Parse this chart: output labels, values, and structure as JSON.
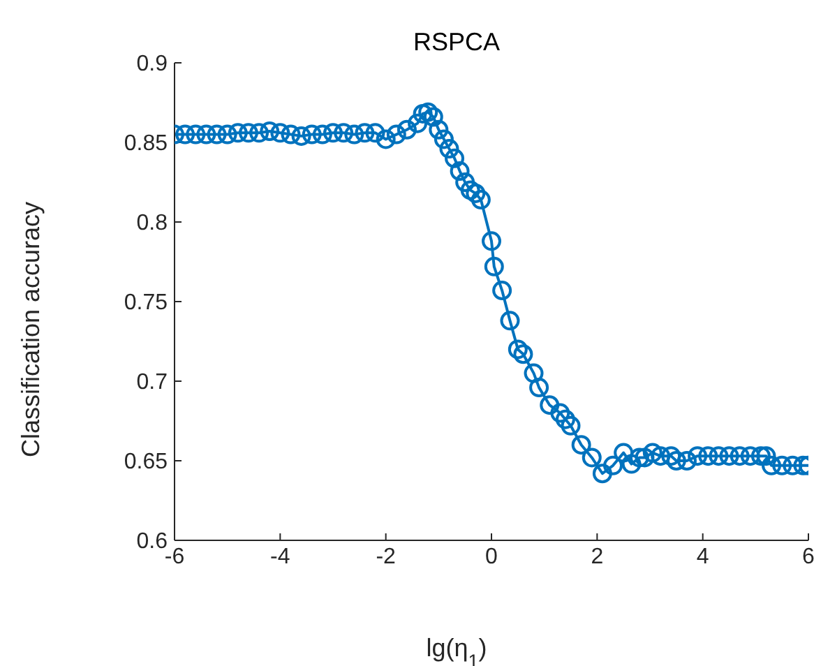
{
  "chart_data": {
    "type": "line",
    "title": "RSPCA",
    "xlabel": "lg(η$_{1}$)",
    "ylabel": "Classification accuracy",
    "marker": "circle",
    "line_style": "solid",
    "grid": false,
    "xlim": [
      -6,
      6
    ],
    "ylim": [
      0.6,
      0.9
    ],
    "xticks": [
      -6,
      -4,
      -2,
      0,
      2,
      4,
      6
    ],
    "yticks": [
      0.6,
      0.65,
      0.7,
      0.75,
      0.8,
      0.85,
      0.9
    ],
    "series": [
      {
        "color": "#0072bd",
        "x": [
          -6,
          -5.8,
          -5.6,
          -5.4,
          -5.2,
          -5,
          -4.8,
          -4.6,
          -4.4,
          -4.2,
          -4,
          -3.8,
          -3.6,
          -3.4,
          -3.2,
          -3,
          -2.8,
          -2.6,
          -2.4,
          -2.2,
          -2,
          -1.8,
          -1.6,
          -1.4,
          -1.3,
          -1.2,
          -1.1,
          -1,
          -0.9,
          -0.8,
          -0.7,
          -0.6,
          -0.5,
          -0.4,
          -0.3,
          -0.2,
          0,
          0.05,
          0.2,
          0.35,
          0.5,
          0.6,
          0.8,
          0.9,
          1.1,
          1.3,
          1.4,
          1.5,
          1.7,
          1.9,
          2.1,
          2.3,
          2.5,
          2.65,
          2.8,
          2.9,
          3.05,
          3.2,
          3.4,
          3.5,
          3.7,
          3.9,
          4.1,
          4.3,
          4.5,
          4.7,
          4.9,
          5.1,
          5.2,
          5.3,
          5.5,
          5.7,
          5.9,
          6
        ],
        "values": [
          0.855,
          0.855,
          0.855,
          0.855,
          0.855,
          0.855,
          0.856,
          0.856,
          0.856,
          0.857,
          0.856,
          0.855,
          0.854,
          0.855,
          0.855,
          0.856,
          0.856,
          0.855,
          0.856,
          0.856,
          0.852,
          0.855,
          0.858,
          0.862,
          0.868,
          0.869,
          0.866,
          0.858,
          0.852,
          0.846,
          0.84,
          0.832,
          0.825,
          0.82,
          0.818,
          0.814,
          0.788,
          0.772,
          0.757,
          0.738,
          0.72,
          0.717,
          0.705,
          0.696,
          0.685,
          0.68,
          0.676,
          0.672,
          0.66,
          0.652,
          0.642,
          0.647,
          0.655,
          0.648,
          0.652,
          0.652,
          0.655,
          0.653,
          0.653,
          0.65,
          0.65,
          0.653,
          0.653,
          0.653,
          0.653,
          0.653,
          0.653,
          0.653,
          0.653,
          0.647,
          0.647,
          0.647,
          0.647,
          0.647
        ]
      }
    ]
  }
}
